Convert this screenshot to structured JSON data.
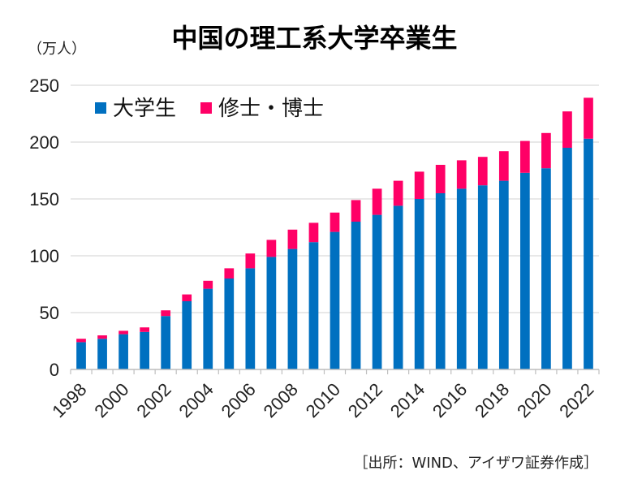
{
  "chart_data": {
    "type": "bar",
    "stacked": true,
    "title": "中国の理工系大学卒業生",
    "unit_label": "（万人）",
    "source": "［出所：WIND、アイザワ証券作成］",
    "categories": [
      "1998",
      "1999",
      "2000",
      "2001",
      "2002",
      "2003",
      "2004",
      "2005",
      "2006",
      "2007",
      "2008",
      "2009",
      "2010",
      "2011",
      "2012",
      "2013",
      "2014",
      "2015",
      "2016",
      "2017",
      "2018",
      "2019",
      "2020",
      "2021",
      "2022"
    ],
    "x_tick_labels": [
      "1998",
      "2000",
      "2002",
      "2004",
      "2006",
      "2008",
      "2010",
      "2012",
      "2014",
      "2016",
      "2018",
      "2020",
      "2022"
    ],
    "series": [
      {
        "name": "大学生",
        "color": "#0070C0",
        "values": [
          24,
          27,
          31,
          33,
          47,
          60,
          71,
          80,
          89,
          99,
          106,
          112,
          121,
          130,
          136,
          144,
          150,
          155,
          159,
          162,
          166,
          173,
          177,
          195,
          203
        ]
      },
      {
        "name": "修士・博士",
        "color": "#FF0066",
        "values": [
          3,
          3,
          3,
          4,
          5,
          6,
          7,
          9,
          13,
          15,
          17,
          17,
          17,
          19,
          23,
          22,
          24,
          25,
          25,
          25,
          26,
          28,
          31,
          32,
          36
        ]
      }
    ],
    "ylim": [
      0,
      250
    ],
    "yticks": [
      0,
      50,
      100,
      150,
      200,
      250
    ],
    "grid": true,
    "legend_placement": "top-left"
  }
}
